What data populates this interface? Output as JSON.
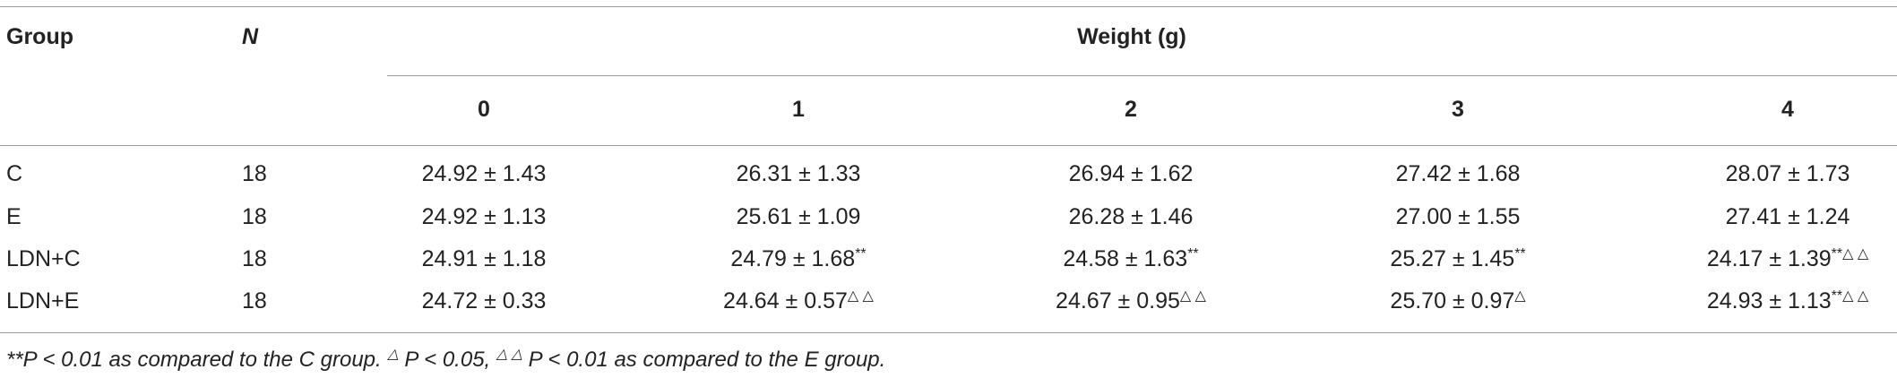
{
  "header": {
    "group": "Group",
    "n": "N",
    "weight": "Weight (g)",
    "days": [
      "0",
      "1",
      "2",
      "3",
      "4"
    ]
  },
  "rows": [
    {
      "group": "C",
      "n": "18",
      "cells": [
        {
          "text": "24.92 ± 1.43"
        },
        {
          "text": "26.31 ± 1.33"
        },
        {
          "text": "26.94 ± 1.62"
        },
        {
          "text": "27.42 ± 1.68"
        },
        {
          "text": "28.07 ± 1.73"
        }
      ]
    },
    {
      "group": "E",
      "n": "18",
      "cells": [
        {
          "text": "24.92 ± 1.13"
        },
        {
          "text": "25.61 ± 1.09"
        },
        {
          "text": "26.28 ± 1.46"
        },
        {
          "text": "27.00 ± 1.55"
        },
        {
          "text": "27.41 ± 1.24"
        }
      ]
    },
    {
      "group": "LDN+C",
      "n": "18",
      "cells": [
        {
          "text": "24.91 ± 1.18"
        },
        {
          "text": "24.79 ± 1.68",
          "sup": "**"
        },
        {
          "text": "24.58 ± 1.63",
          "sup": "**"
        },
        {
          "text": "25.27 ± 1.45",
          "sup": "**"
        },
        {
          "text": "24.17 ± 1.39",
          "sup": "**△ △"
        }
      ]
    },
    {
      "group": "LDN+E",
      "n": "18",
      "cells": [
        {
          "text": "24.72 ± 0.33"
        },
        {
          "text": "24.64 ± 0.57",
          "sup": "△ △"
        },
        {
          "text": "24.67 ± 0.95",
          "sup": "△ △"
        },
        {
          "text": "25.70 ± 0.97",
          "sup": "△"
        },
        {
          "text": "24.93 ± 1.13",
          "sup": "**△ △"
        }
      ]
    }
  ],
  "footnote": [
    "**P < 0.01 as compared to the C group. ",
    "△",
    " P < 0.05, ",
    "△ △",
    " P < 0.01 as compared to the E group."
  ]
}
